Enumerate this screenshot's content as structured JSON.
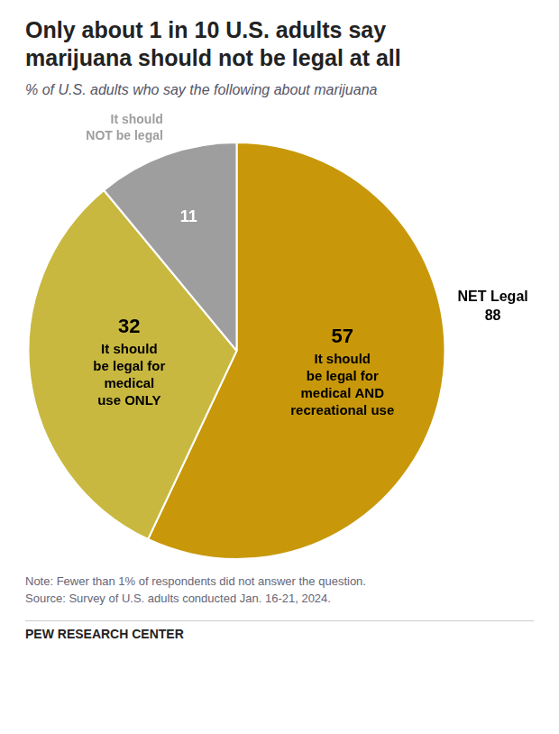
{
  "chart_data": {
    "type": "pie",
    "title": "Only about 1 in 10 U.S. adults say\nmarijuana should not be legal at all",
    "subtitle": "% of U.S. adults who say the following about marijuana",
    "categories": [
      "It should\nbe legal for\nmedical AND\nrecreational use",
      "It should\nbe legal for\nmedical\nuse ONLY",
      "It should\nNOT be legal"
    ],
    "values": [
      57,
      32,
      11
    ],
    "colors": [
      "#C8980A",
      "#C8B840",
      "#9E9E9E"
    ],
    "data_labels": true,
    "annotations": [
      "NET Legal\n88"
    ],
    "notes": [
      "Note: Fewer than 1% of respondents did not answer the question.",
      "Source: Survey of U.S. adults conducted Jan. 16-21, 2024."
    ],
    "source": "PEW RESEARCH CENTER"
  }
}
